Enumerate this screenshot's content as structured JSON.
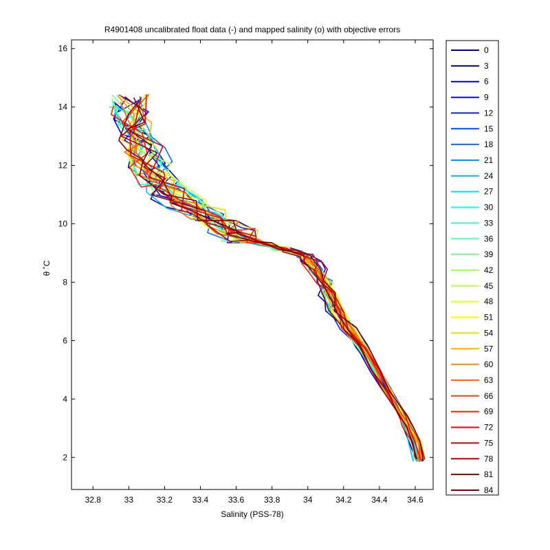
{
  "chart_data": {
    "type": "line",
    "title": "R4901408 uncalibrated float data (-) and mapped salinity (o) with objective errors",
    "xlabel": "Salinity (PSS-78)",
    "ylabel": "θ ˚C",
    "xlim": [
      32.68,
      34.7
    ],
    "ylim": [
      0.9,
      16.3
    ],
    "xticks": [
      32.8,
      33,
      33.2,
      33.4,
      33.6,
      33.8,
      34,
      34.2,
      34.4,
      34.6
    ],
    "xtick_labels": [
      "32.8",
      "33",
      "33.2",
      "33.4",
      "33.6",
      "33.8",
      "34",
      "34.2",
      "34.4",
      "34.6"
    ],
    "yticks": [
      2,
      4,
      6,
      8,
      10,
      12,
      14,
      16
    ],
    "ytick_labels": [
      "2",
      "4",
      "6",
      "8",
      "10",
      "12",
      "14",
      "16"
    ],
    "grid": false,
    "legend_position": "right",
    "colormap": "jet",
    "legend": [
      "0",
      "3",
      "6",
      "9",
      "12",
      "15",
      "18",
      "21",
      "24",
      "27",
      "30",
      "33",
      "36",
      "39",
      "42",
      "45",
      "48",
      "51",
      "54",
      "57",
      "60",
      "63",
      "66",
      "69",
      "72",
      "75",
      "78",
      "81",
      "84"
    ],
    "legend_colors": [
      "#00008f",
      "#0000b3",
      "#0000d6",
      "#0000fa",
      "#0022ff",
      "#0048ff",
      "#0070ff",
      "#0094ff",
      "#00b8ff",
      "#00dcff",
      "#06ffff",
      "#2effd0",
      "#52ffac",
      "#76ff88",
      "#9aff64",
      "#beff40",
      "#e2ff1c",
      "#fff800",
      "#ffd400",
      "#ffb000",
      "#ff8c00",
      "#ff6800",
      "#ff4400",
      "#ff2000",
      "#f90000",
      "#d50000",
      "#b10000",
      "#8d0000",
      "#800000"
    ],
    "profile_path": {
      "x": [
        34.62,
        34.6,
        34.56,
        34.52,
        34.45,
        34.38,
        34.3,
        34.22,
        34.16,
        34.12,
        34.08,
        34.05,
        34.02,
        33.98,
        33.92,
        33.85,
        33.78,
        33.7,
        33.62,
        33.52,
        33.42,
        33.32,
        33.22,
        33.15,
        33.12,
        33.08,
        33.05,
        33.02,
        33.0
      ],
      "y": [
        1.9,
        2.5,
        3.0,
        3.5,
        4.2,
        5.0,
        5.8,
        6.4,
        7.0,
        7.6,
        8.0,
        8.4,
        8.7,
        8.9,
        9.05,
        9.15,
        9.3,
        9.4,
        9.6,
        9.9,
        10.3,
        10.7,
        11.1,
        11.5,
        12.0,
        12.5,
        13.0,
        13.6,
        14.2
      ]
    }
  }
}
